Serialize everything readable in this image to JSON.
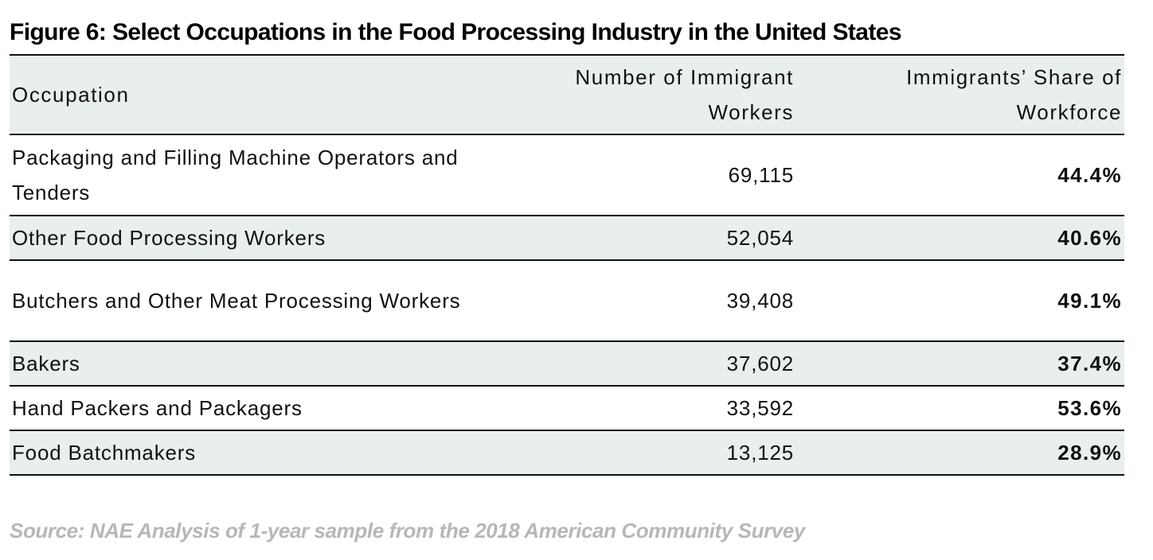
{
  "title": "Figure 6: Select Occupations in the Food Processing Industry in the United States",
  "chart_data": {
    "type": "table",
    "columns": [
      "Occupation",
      "Number of Immigrant Workers",
      "Immigrants’ Share of Workforce"
    ],
    "rows": [
      {
        "occupation": "Packaging and Filling Machine Operators and Tenders",
        "workers": "69,115",
        "share": "44.4%"
      },
      {
        "occupation": "Other Food Processing Workers",
        "workers": "52,054",
        "share": "40.6%"
      },
      {
        "occupation": "Butchers and Other Meat Processing Workers",
        "workers": "39,408",
        "share": "49.1%"
      },
      {
        "occupation": "Bakers",
        "workers": "37,602",
        "share": "37.4%"
      },
      {
        "occupation": "Hand Packers and Packagers",
        "workers": "33,592",
        "share": "53.6%"
      },
      {
        "occupation": "Food Batchmakers",
        "workers": "13,125",
        "share": "28.9%"
      }
    ]
  },
  "source": "Source: NAE Analysis of 1-year sample from the 2018 American Community Survey",
  "colors": {
    "header_bg": "#e9eeee",
    "shaded_row_bg": "#e9eeee",
    "rule": "#111111",
    "source_text": "#b7b7b7"
  }
}
